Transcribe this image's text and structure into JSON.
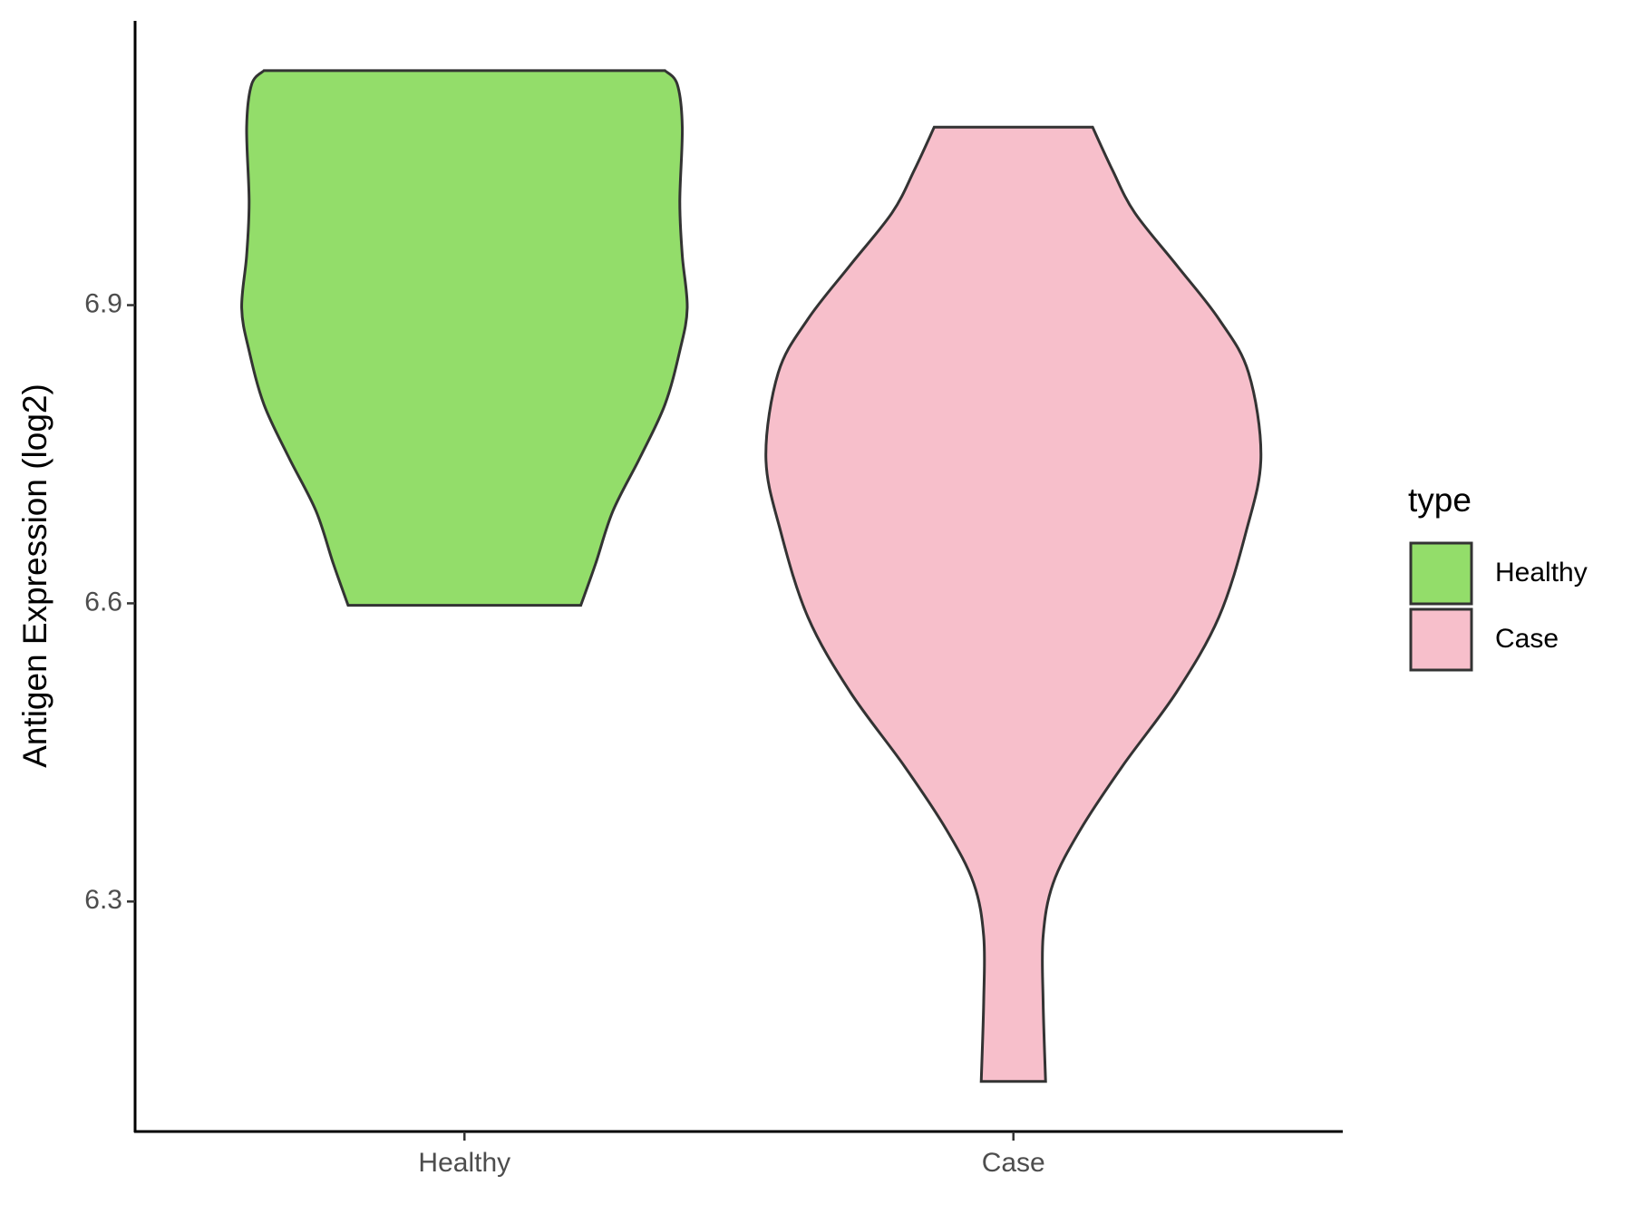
{
  "chart_data": {
    "type": "violin",
    "y_label": "Antigen Expression (log2)",
    "categories": [
      "Healthy",
      "Case"
    ],
    "ylim": [
      6.0686,
      7.186
    ],
    "yticks": [
      6.3,
      6.6,
      6.9
    ],
    "legend_title": "type",
    "legend_position": "right",
    "series": [
      {
        "name": "Healthy",
        "color": "#93dd6a",
        "y": [
          7.136,
          7.122,
          7.079,
          7.004,
          6.95,
          6.897,
          6.854,
          6.8,
          6.747,
          6.693,
          6.64,
          6.598
        ],
        "density": [
          0.81,
          0.86,
          0.88,
          0.87,
          0.88,
          0.9,
          0.87,
          0.81,
          0.71,
          0.6,
          0.53,
          0.47
        ]
      },
      {
        "name": "Case",
        "color": "#f7bfcb",
        "y": [
          7.079,
          7.036,
          6.993,
          6.94,
          6.886,
          6.832,
          6.747,
          6.672,
          6.586,
          6.511,
          6.436,
          6.372,
          6.318,
          6.265,
          6.2,
          6.119
        ],
        "density": [
          0.32,
          0.4,
          0.49,
          0.66,
          0.83,
          0.95,
          1.0,
          0.94,
          0.83,
          0.66,
          0.44,
          0.27,
          0.16,
          0.12,
          0.12,
          0.13
        ]
      }
    ]
  }
}
